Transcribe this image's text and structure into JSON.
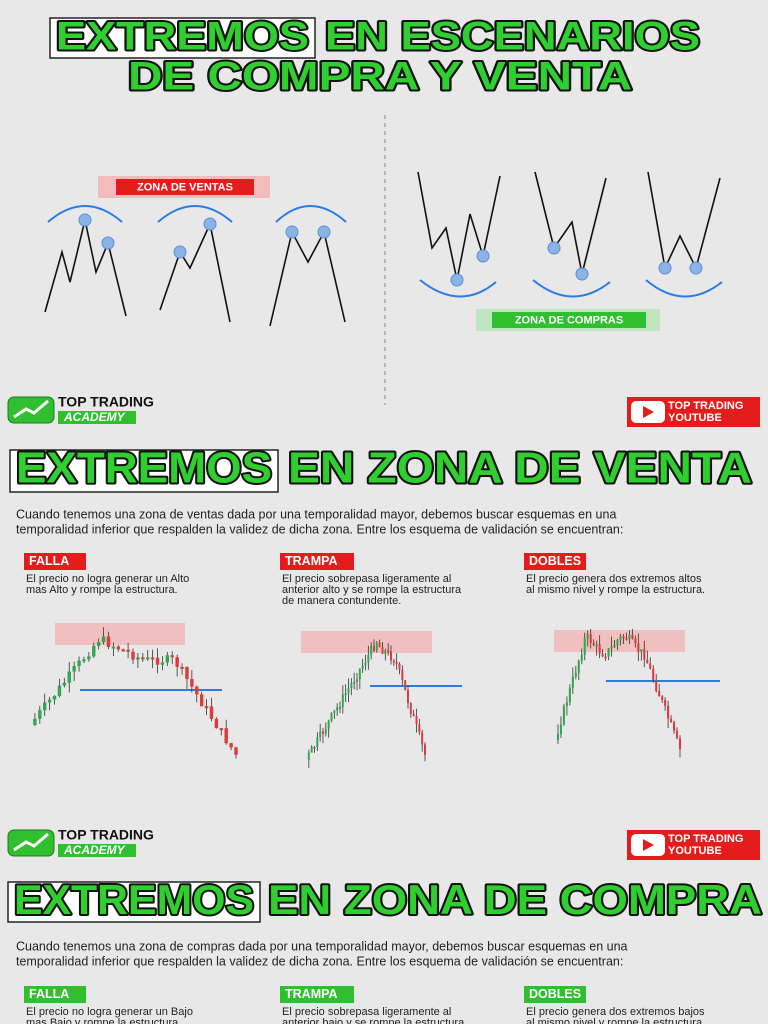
{
  "header": {
    "title_highlight": "EXTREMOS",
    "title_rest": "EN ESCENARIOS",
    "title_line2": "DE COMPRA Y VENTA"
  },
  "diagram": {
    "sell_zone": "ZONA DE VENTAS",
    "buy_zone": "ZONA DE COMPRAS"
  },
  "banners": [
    {
      "academy": [
        "TOP TRADING",
        "ACADEMY"
      ],
      "youtube": [
        "TOP TRADING",
        "YOUTUBE"
      ]
    },
    {
      "academy": [
        "TOP TRADING",
        "ACADEMY"
      ],
      "youtube": [
        "TOP TRADING",
        "YOUTUBE"
      ]
    }
  ],
  "sections": [
    {
      "title_highlight": "EXTREMOS",
      "title_rest": "EN ZONA DE VENTA",
      "intro": [
        "Cuando tenemos una zona de ventas dada por una temporalidad mayor, debemos buscar esquemas en una",
        "temporalidad inferior que respalden la validez de dicha zona. Entre los esquema de validación se encuentran:"
      ],
      "items": [
        {
          "label": "FALLA",
          "text": [
            "El precio no logra generar un Alto",
            "mas Alto y rompe la estructura."
          ]
        },
        {
          "label": "TRAMPA",
          "text": [
            "El precio sobrepasa ligeramente al",
            "anterior alto y se rompe la estructura",
            "de manera contundente."
          ]
        },
        {
          "label": "DOBLES",
          "text": [
            "El precio genera dos extremos altos",
            "al mismo nivel y rompe la estructura."
          ]
        }
      ]
    },
    {
      "title_highlight": "EXTREMOS",
      "title_rest": "EN ZONA DE COMPRA",
      "intro": [
        "Cuando tenemos una zona de compras dada por una temporalidad mayor, debemos buscar esquemas en una",
        "temporalidad inferior que respalden la validez de dicha zona. Entre los esquema de validación se encuentran:"
      ],
      "items": [
        {
          "label": "FALLA",
          "text": [
            "El precio no logra generar un Bajo",
            "mas Bajo y rompe la estructura."
          ]
        },
        {
          "label": "TRAMPA",
          "text": [
            "El precio sobrepasa ligeramente al",
            "anterior bajo y se rompe la estructura"
          ]
        },
        {
          "label": "DOBLES",
          "text": [
            "El precio genera dos extremos bajos",
            "al mismo nivel y rompe la estructura."
          ]
        }
      ]
    }
  ]
}
